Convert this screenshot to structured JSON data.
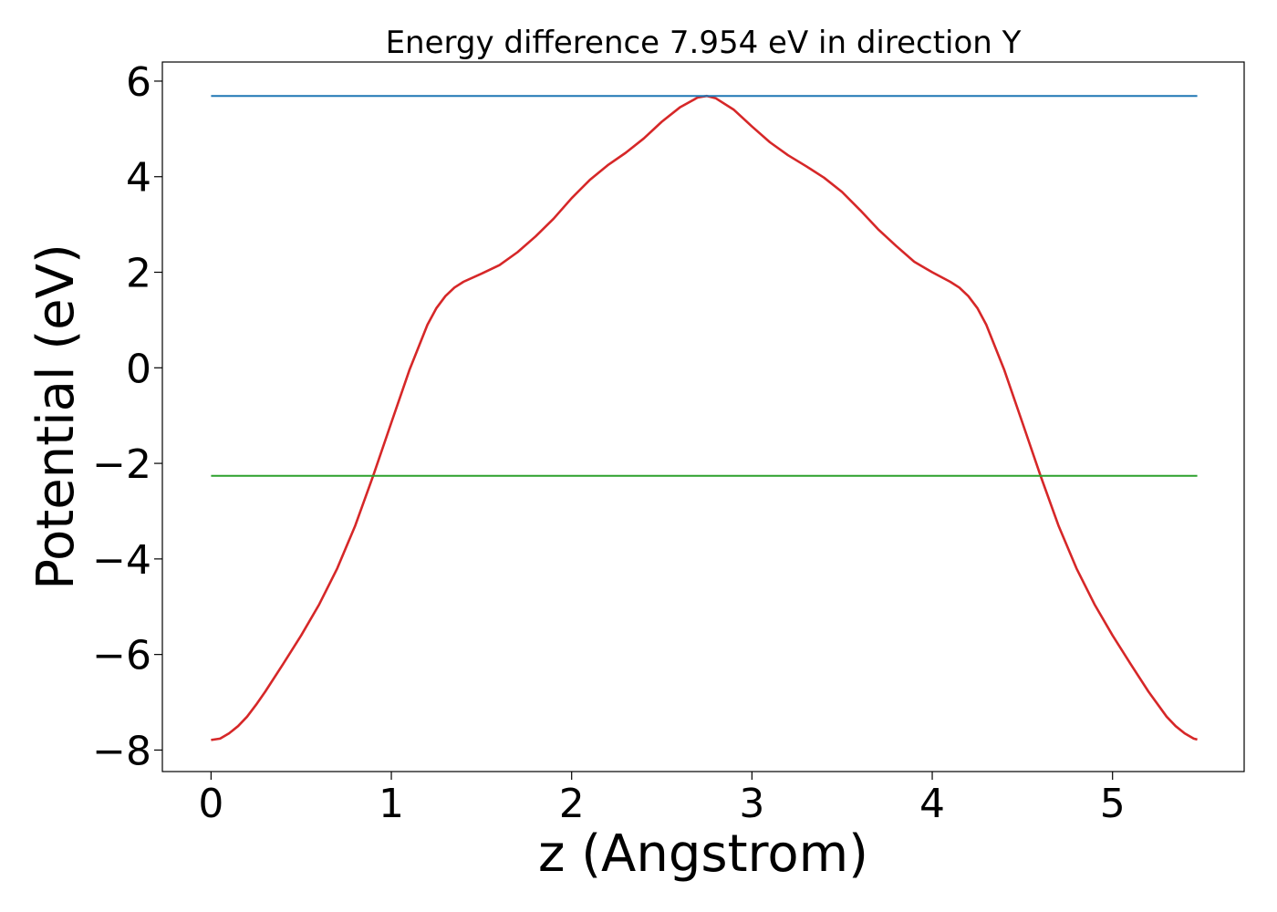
{
  "chart_data": {
    "type": "line",
    "title": "Energy difference 7.954 eV in direction Y",
    "xlabel": "z (Angstrom)",
    "ylabel": "Potential (eV)",
    "xlim": [
      -0.27,
      5.73
    ],
    "ylim": [
      -8.45,
      6.4
    ],
    "xticks": [
      0,
      1,
      2,
      3,
      4,
      5
    ],
    "yticks": [
      -8,
      -6,
      -4,
      -2,
      0,
      2,
      4,
      6
    ],
    "xtick_labels": [
      "0",
      "1",
      "2",
      "3",
      "4",
      "5"
    ],
    "ytick_labels": [
      "−8",
      "−6",
      "−4",
      "−2",
      "0",
      "2",
      "4",
      "6"
    ],
    "grid": false,
    "series": [
      {
        "color": "#d62728",
        "x": [
          0,
          0.05,
          0.1,
          0.15,
          0.2,
          0.25,
          0.3,
          0.4,
          0.5,
          0.6,
          0.7,
          0.8,
          0.9,
          1.0,
          1.1,
          1.2,
          1.25,
          1.3,
          1.35,
          1.4,
          1.5,
          1.6,
          1.7,
          1.8,
          1.9,
          2.0,
          2.1,
          2.2,
          2.3,
          2.4,
          2.5,
          2.6,
          2.7,
          2.75,
          2.8,
          2.9,
          3.0,
          3.1,
          3.2,
          3.3,
          3.4,
          3.5,
          3.6,
          3.7,
          3.8,
          3.9,
          4.0,
          4.1,
          4.15,
          4.2,
          4.25,
          4.3,
          4.4,
          4.5,
          4.6,
          4.7,
          4.8,
          4.9,
          5.0,
          5.1,
          5.2,
          5.3,
          5.35,
          5.4,
          5.45,
          5.47
        ],
        "y": [
          -7.79,
          -7.76,
          -7.65,
          -7.5,
          -7.3,
          -7.05,
          -6.78,
          -6.2,
          -5.6,
          -4.95,
          -4.2,
          -3.3,
          -2.25,
          -1.15,
          -0.05,
          0.9,
          1.25,
          1.5,
          1.68,
          1.8,
          1.97,
          2.15,
          2.42,
          2.75,
          3.12,
          3.55,
          3.93,
          4.24,
          4.5,
          4.8,
          5.15,
          5.45,
          5.66,
          5.69,
          5.64,
          5.4,
          5.05,
          4.72,
          4.45,
          4.22,
          3.98,
          3.68,
          3.3,
          2.9,
          2.55,
          2.22,
          2.0,
          1.8,
          1.68,
          1.5,
          1.25,
          0.9,
          -0.05,
          -1.15,
          -2.25,
          -3.3,
          -4.2,
          -4.95,
          -5.6,
          -6.2,
          -6.78,
          -7.3,
          -7.5,
          -7.65,
          -7.76,
          -7.78
        ]
      },
      {
        "color": "#1f77b4",
        "x": [
          0,
          5.47
        ],
        "y": [
          5.69,
          5.69
        ]
      },
      {
        "color": "#2ca02c",
        "x": [
          0,
          5.47
        ],
        "y": [
          -2.26,
          -2.26
        ]
      }
    ]
  }
}
